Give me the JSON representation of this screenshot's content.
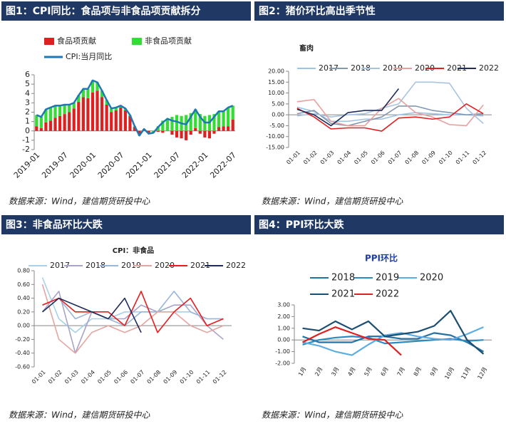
{
  "chart_data": [
    {
      "type": "bar",
      "title": "图1：CPI同比：食品项与非食品项贡献拆分",
      "source": "数据来源：Wind，建信期货研投中心",
      "categories": [
        "2019-01",
        null,
        null,
        null,
        null,
        null,
        "2019-07",
        null,
        null,
        null,
        null,
        null,
        "2020-01",
        null,
        null,
        null,
        null,
        null,
        "2020-07",
        null,
        null,
        null,
        null,
        null,
        "2021-01",
        null,
        null,
        null,
        null,
        null,
        "2021-07",
        null,
        null,
        null,
        null,
        null,
        "2022-01",
        null,
        null,
        null,
        null,
        null,
        "2022-07"
      ],
      "series": [
        {
          "name": "食品项贡献",
          "color": "#e02020",
          "values": [
            0.5,
            0.3,
            0.9,
            1.1,
            1.4,
            1.6,
            1.8,
            2.0,
            2.4,
            3.1,
            3.6,
            3.5,
            4.1,
            4.3,
            3.6,
            2.8,
            2.0,
            2.2,
            2.5,
            2.2,
            1.6,
            0.4,
            -0.4,
            0.2,
            -0.2,
            0.0,
            -0.1,
            -0.2,
            0.0,
            -0.4,
            -0.7,
            -0.8,
            -1.0,
            -0.4,
            0.3,
            -0.3,
            -0.7,
            -0.8,
            -0.3,
            0.4,
            0.5,
            0.5,
            1.2
          ]
        },
        {
          "name": "非食品项贡献",
          "color": "#33dd33",
          "values": [
            1.2,
            1.2,
            1.4,
            1.4,
            1.3,
            1.1,
            1.0,
            0.8,
            0.6,
            0.7,
            0.9,
            1.0,
            1.3,
            0.9,
            0.7,
            0.5,
            0.4,
            0.3,
            0.2,
            0.2,
            0.1,
            0.1,
            -0.1,
            0.0,
            -0.1,
            -0.2,
            0.5,
            1.1,
            1.3,
            1.5,
            1.7,
            1.6,
            1.7,
            1.9,
            2.0,
            1.8,
            1.6,
            1.7,
            1.8,
            1.7,
            1.6,
            2.0,
            1.5
          ]
        },
        {
          "name": "CPI:当月同比",
          "color": "#1f77b4",
          "type": "line",
          "values": [
            1.7,
            1.5,
            2.3,
            2.5,
            2.7,
            2.7,
            2.8,
            2.8,
            3.0,
            3.8,
            4.5,
            4.5,
            5.4,
            5.2,
            4.3,
            3.3,
            2.4,
            2.5,
            2.7,
            2.4,
            1.7,
            0.5,
            -0.5,
            0.2,
            -0.3,
            -0.2,
            0.4,
            0.9,
            1.3,
            1.1,
            1.0,
            0.8,
            0.7,
            1.5,
            2.3,
            1.5,
            0.9,
            0.9,
            1.5,
            2.1,
            2.1,
            2.5,
            2.7
          ]
        }
      ],
      "ylim": [
        -2,
        6
      ],
      "yticks": [
        -2,
        -1,
        0,
        1,
        2,
        3,
        4,
        5,
        6
      ],
      "grid": false
    },
    {
      "type": "line",
      "title": "图2：猪价环比高出季节性",
      "chart_title": "畜肉",
      "source": "数据来源：Wind，建信期货研投中心",
      "categories": [
        "01-01",
        "01-02",
        "01-03",
        "01-04",
        "01-05",
        "01-06",
        "01-07",
        "01-08",
        "01-09",
        "01-10",
        "01-11",
        "01-12"
      ],
      "series": [
        {
          "name": "2017",
          "color": "#9dc3e6",
          "values": [
            3.5,
            1.5,
            -3,
            -3,
            -2,
            -2,
            0,
            1,
            0.5,
            0,
            0,
            -0.5
          ]
        },
        {
          "name": "2018",
          "color": "#8497b0",
          "values": [
            0.5,
            2,
            -4,
            -5,
            -3,
            -1,
            4,
            4,
            2,
            1,
            0,
            0.5
          ]
        },
        {
          "name": "2019",
          "color": "#a9c4e0",
          "values": [
            -0.5,
            0.5,
            -1,
            0,
            0.5,
            3,
            5,
            15,
            15,
            14.5,
            3,
            -4
          ]
        },
        {
          "name": "2020",
          "color": "#e6a0a0",
          "values": [
            6,
            7,
            -3,
            -5,
            -5,
            3,
            7.5,
            1,
            -1,
            -4.5,
            -5,
            4.5
          ]
        },
        {
          "name": "2021",
          "color": "#e02020",
          "values": [
            3,
            -1,
            -6.5,
            -6,
            -6,
            -7.5,
            -1.5,
            -1,
            -2,
            -1,
            5,
            0.5
          ]
        },
        {
          "name": "2022",
          "color": "#1f2d5a",
          "values": [
            2.5,
            0,
            -5,
            1,
            2,
            2,
            12,
            null,
            null,
            null,
            null,
            null
          ]
        }
      ],
      "ylim": [
        -15,
        20
      ],
      "yticks": [
        {
          "value": -15,
          "label": "-15.00"
        },
        {
          "value": -10,
          "label": "-10.00"
        },
        {
          "value": -5,
          "label": "-5.00"
        },
        {
          "value": 0,
          "label": "0.00"
        },
        {
          "value": 5,
          "label": "5.00"
        },
        {
          "value": 10,
          "label": "10.00"
        },
        {
          "value": 15,
          "label": "15.00"
        },
        {
          "value": 20,
          "label": "20.00"
        }
      ],
      "grid": false
    },
    {
      "type": "line",
      "title": "图3：非食品环比大跌",
      "chart_title": "CPI：非食品",
      "source": "数据来源：Wind，建信期货研投中心",
      "categories": [
        "01-01",
        "01-02",
        "01-03",
        "01-04",
        "01-05",
        "01-06",
        "01-07",
        "01-08",
        "01-09",
        "01-10",
        "01-11",
        "01-12"
      ],
      "series": [
        {
          "name": "2017",
          "color": "#a8d0e8",
          "values": [
            0.7,
            0.1,
            -0.1,
            0.1,
            0.1,
            0.2,
            0.2,
            0.2,
            0.2,
            0.2,
            0.1,
            0.1
          ]
        },
        {
          "name": "2018",
          "color": "#a9a3c9",
          "values": [
            0.2,
            0.5,
            -0.4,
            0.2,
            0.1,
            0.1,
            0.3,
            0.2,
            0.3,
            0.3,
            0.0,
            -0.2
          ]
        },
        {
          "name": "2019",
          "color": "#9ab5d8",
          "values": [
            0.3,
            0.4,
            0.1,
            0.2,
            0.1,
            0.0,
            0.2,
            0.2,
            0.5,
            0.2,
            0.1,
            0.1
          ]
        },
        {
          "name": "2020",
          "color": "#e5a5a0",
          "values": [
            0.6,
            -0.2,
            -0.4,
            -0.1,
            0.0,
            -0.1,
            0.0,
            0.2,
            0.2,
            0.0,
            -0.1,
            0.0
          ]
        },
        {
          "name": "2021",
          "color": "#e81c1c",
          "values": [
            0.3,
            0.4,
            0.2,
            0.2,
            0.2,
            0.0,
            0.5,
            -0.1,
            0.2,
            0.4,
            0.0,
            0.1
          ]
        },
        {
          "name": "2022",
          "color": "#1c2b5a",
          "values": [
            0.2,
            0.4,
            0.3,
            0.2,
            0.1,
            0.4,
            -0.1,
            null,
            null,
            null,
            null,
            null
          ]
        }
      ],
      "ylim": [
        -0.6,
        0.8
      ],
      "yticks": [
        {
          "value": -0.6,
          "label": "-0.60"
        },
        {
          "value": -0.4,
          "label": "-0.40"
        },
        {
          "value": -0.2,
          "label": "-0.20"
        },
        {
          "value": 0,
          "label": "0.00"
        },
        {
          "value": 0.2,
          "label": "0.20"
        },
        {
          "value": 0.4,
          "label": "0.40"
        },
        {
          "value": 0.6,
          "label": "0.60"
        },
        {
          "value": 0.8,
          "label": "0.80"
        }
      ],
      "grid": false
    },
    {
      "type": "line",
      "title": "图4：PPI环比大跌",
      "chart_title": "PPI环比",
      "source": "数据来源：Wind，建信期货研投中心",
      "categories": [
        "1月",
        "2月",
        "3月",
        "4月",
        "5月",
        "6月",
        "7月",
        "8月",
        "9月",
        "10月",
        "11月",
        "12月"
      ],
      "series": [
        {
          "name": "2018",
          "color": "#2471a3",
          "values": [
            0.3,
            -0.2,
            -0.2,
            -0.2,
            0.3,
            0.3,
            0.1,
            0.1,
            0.6,
            0.4,
            -0.2,
            -1.0
          ]
        },
        {
          "name": "2019",
          "color": "#2e8bc0",
          "values": [
            -0.4,
            0.0,
            0.2,
            0.3,
            0.2,
            -0.3,
            -0.2,
            -0.1,
            0.0,
            0.1,
            -0.1,
            0.0
          ]
        },
        {
          "name": "2020",
          "color": "#5dade2",
          "values": [
            -0.2,
            -0.5,
            -1.0,
            -1.3,
            -0.4,
            0.4,
            0.6,
            0.3,
            0.1,
            0.0,
            0.5,
            1.1
          ]
        },
        {
          "name": "2021",
          "color": "#1b4f72",
          "values": [
            1.0,
            0.8,
            1.6,
            0.9,
            1.6,
            0.3,
            0.5,
            0.7,
            1.2,
            2.5,
            0.0,
            -1.2
          ]
        },
        {
          "name": "2022",
          "color": "#e02020",
          "values": [
            -0.2,
            0.5,
            1.1,
            0.6,
            0.1,
            0.0,
            -1.3,
            null,
            null,
            null,
            null,
            null
          ]
        }
      ],
      "ylim": [
        -2,
        3
      ],
      "yticks": [
        {
          "value": -2,
          "label": "-2.00"
        },
        {
          "value": -1,
          "label": "-1.00"
        },
        {
          "value": 0,
          "label": "0.00"
        },
        {
          "value": 1,
          "label": "1.00"
        },
        {
          "value": 2,
          "label": "2.00"
        },
        {
          "value": 3,
          "label": "3.00"
        }
      ],
      "grid": false
    }
  ]
}
